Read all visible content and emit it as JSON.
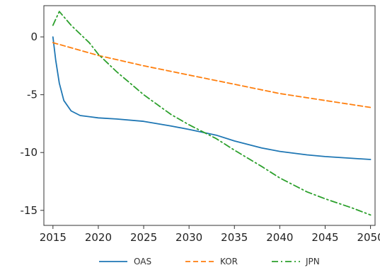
{
  "chart_data": {
    "type": "line",
    "xlim": [
      2014,
      2050.5
    ],
    "ylim": [
      -16.3,
      2.7
    ],
    "x_ticks": [
      "2015",
      "2020",
      "2025",
      "2030",
      "2035",
      "2040",
      "2045",
      "2050"
    ],
    "y_ticks": [
      "0",
      "-5",
      "-10",
      "-15"
    ],
    "grid": false,
    "legend_position": "bottom",
    "series": [
      {
        "name": "OAS",
        "color": "#1f77b4",
        "style": "solid",
        "points": [
          [
            2015,
            0
          ],
          [
            2015.3,
            -2
          ],
          [
            2015.7,
            -4
          ],
          [
            2016.2,
            -5.5
          ],
          [
            2017,
            -6.4
          ],
          [
            2018,
            -6.8
          ],
          [
            2020,
            -7.0
          ],
          [
            2022,
            -7.1
          ],
          [
            2025,
            -7.3
          ],
          [
            2028,
            -7.7
          ],
          [
            2030,
            -8.0
          ],
          [
            2033,
            -8.5
          ],
          [
            2035,
            -9.0
          ],
          [
            2038,
            -9.6
          ],
          [
            2040,
            -9.9
          ],
          [
            2043,
            -10.2
          ],
          [
            2045,
            -10.35
          ],
          [
            2048,
            -10.5
          ],
          [
            2050,
            -10.6
          ]
        ]
      },
      {
        "name": "KOR",
        "color": "#ff7f0e",
        "style": "dashed",
        "points": [
          [
            2015,
            -0.5
          ],
          [
            2020,
            -1.6
          ],
          [
            2025,
            -2.5
          ],
          [
            2030,
            -3.3
          ],
          [
            2035,
            -4.1
          ],
          [
            2040,
            -4.9
          ],
          [
            2045,
            -5.5
          ],
          [
            2050,
            -6.1
          ]
        ]
      },
      {
        "name": "JPN",
        "color": "#2ca02c",
        "style": "dashdot",
        "points": [
          [
            2015,
            1.0
          ],
          [
            2015.7,
            2.2
          ],
          [
            2017,
            1.0
          ],
          [
            2019,
            -0.5
          ],
          [
            2020,
            -1.5
          ],
          [
            2022,
            -3.0
          ],
          [
            2025,
            -5.0
          ],
          [
            2028,
            -6.7
          ],
          [
            2030,
            -7.6
          ],
          [
            2033,
            -8.8
          ],
          [
            2035,
            -9.8
          ],
          [
            2038,
            -11.2
          ],
          [
            2040,
            -12.2
          ],
          [
            2043,
            -13.4
          ],
          [
            2045,
            -14.0
          ],
          [
            2048,
            -14.8
          ],
          [
            2050,
            -15.4
          ]
        ]
      }
    ]
  }
}
